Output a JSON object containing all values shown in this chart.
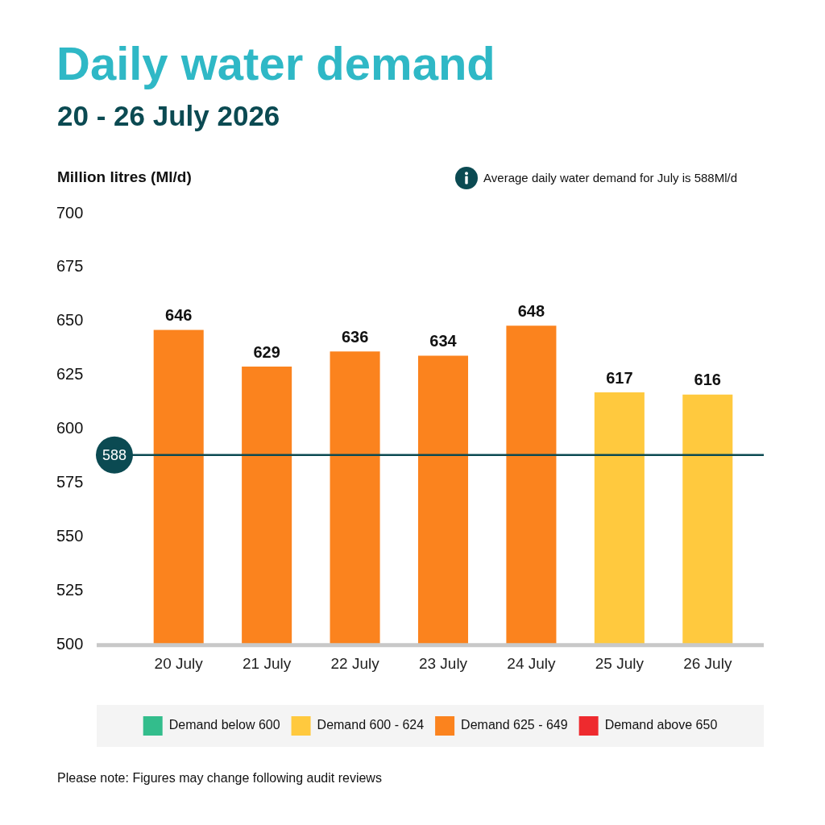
{
  "chart_data": {
    "type": "bar",
    "title": "Daily water demand",
    "subtitle": "20 - 26 July 2026",
    "ylabel": "Million litres (Ml/d)",
    "annotations": [
      "Average daily water demand for July is 588Ml/d",
      "Please note: Figures may change following audit reviews"
    ],
    "categories": [
      "20 July",
      "21 July",
      "22 July",
      "23 July",
      "24 July",
      "25 July",
      "26 July"
    ],
    "series": [
      {
        "name": "Demand below 600",
        "color": "#33bd8c",
        "values": [
          null,
          null,
          null,
          null,
          null,
          null,
          null
        ]
      },
      {
        "name": "Demand 600 - 624",
        "color": "#ffc93e",
        "values": [
          null,
          null,
          null,
          null,
          null,
          617,
          616
        ]
      },
      {
        "name": "Demand 625 - 649",
        "color": "#fb831e",
        "values": [
          646,
          629,
          636,
          634,
          648,
          null,
          null
        ]
      },
      {
        "name": "Demand above 650",
        "color": "#ee2a2e",
        "values": [
          null,
          null,
          null,
          null,
          null,
          null,
          null
        ]
      }
    ],
    "ylim": [
      500,
      700
    ],
    "yticks": [
      500,
      525,
      550,
      575,
      600,
      625,
      650,
      675,
      700
    ],
    "grid": false,
    "legend": "bottom",
    "data_labels": true,
    "ref_lines": [
      {
        "axis": "y",
        "value": 588,
        "label": "588",
        "color": "#0b4a52"
      }
    ]
  }
}
